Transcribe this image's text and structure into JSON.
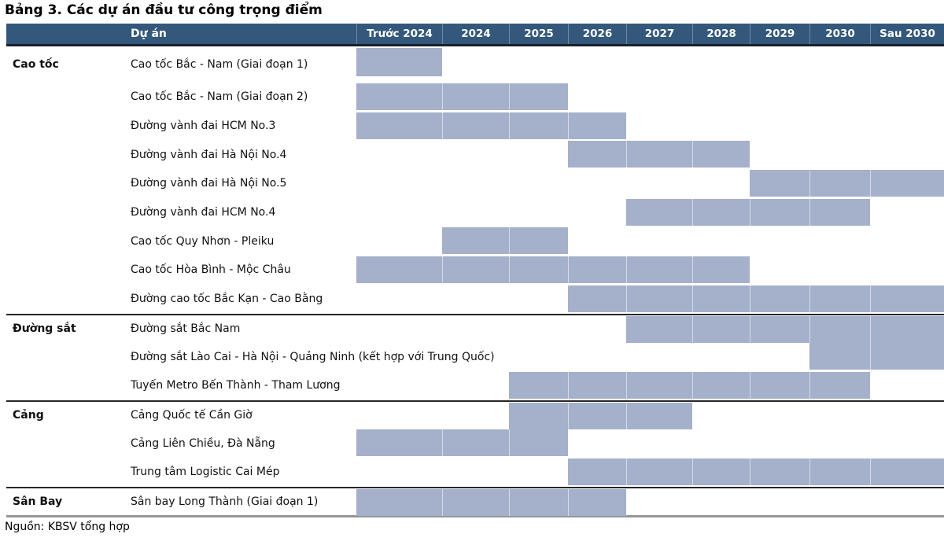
{
  "title": "Bảng 3. Các dự án đầu tư công trọng điểm",
  "source": "Nguồn: KBSV tổng hợp",
  "colors": {
    "header_bg": "#33587B",
    "header_text": "#FFFFFF",
    "header_border": "#17212D",
    "bar": "#A5B0CB",
    "section_line": "#262626",
    "table_bottom_border": "#969696"
  },
  "chart_data": {
    "type": "gantt",
    "title": "Bảng 3. Các dự án đầu tư công trọng điểm",
    "source": "Nguồn: KBSV tổng hợp",
    "project_header": "Dự án",
    "columns": [
      "Trước 2024",
      "2024",
      "2025",
      "2026",
      "2027",
      "2028",
      "2029",
      "2030",
      "Sau 2030"
    ],
    "legend_position": "none",
    "grid": "cell-borders-within-bars",
    "groups": [
      {
        "label": "Cao tốc",
        "projects": [
          {
            "name": "Cao tốc Bắc - Nam (Giai đoạn 1)",
            "start": "Trước 2024",
            "end": "Trước 2024"
          },
          {
            "name": "Cao tốc Bắc - Nam (Giai đoạn 2)",
            "start": "Trước 2024",
            "end": "2025"
          },
          {
            "name": "Đường vành đai HCM No.3",
            "start": "Trước 2024",
            "end": "2026"
          },
          {
            "name": "Đường vành đai Hà Nội No.4",
            "start": "2026",
            "end": "2028"
          },
          {
            "name": "Đường vành đai Hà Nội No.5",
            "start": "2029",
            "end": "Sau 2030"
          },
          {
            "name": "Đường vành đai HCM No.4",
            "start": "2027",
            "end": "2030"
          },
          {
            "name": "Cao tốc Quy Nhơn - Pleiku",
            "start": "2024",
            "end": "2025"
          },
          {
            "name": "Cao tốc Hòa Bình - Mộc Châu",
            "start": "Trước 2024",
            "end": "2028"
          },
          {
            "name": "Đường cao tốc Bắc Kạn - Cao Bằng",
            "start": "2026",
            "end": "Sau 2030"
          }
        ]
      },
      {
        "label": "Đường sắt",
        "projects": [
          {
            "name": "Đường sắt Bắc Nam",
            "start": "2027",
            "end": "Sau 2030"
          },
          {
            "name": "Đường sắt Lào Cai - Hà Nội - Quảng Ninh (kết hợp với Trung Quốc)",
            "start": "2030",
            "end": "Sau 2030"
          },
          {
            "name": "Tuyến Metro Bến Thành - Tham Lương",
            "start": "2025",
            "end": "2030"
          }
        ]
      },
      {
        "label": "Cảng",
        "projects": [
          {
            "name": "Cảng Quốc tế Cần Giờ",
            "start": "2025",
            "end": "2027"
          },
          {
            "name": "Cảng Liên Chiều, Đà Nẵng",
            "start": "Trước 2024",
            "end": "2025"
          },
          {
            "name": "Trung tâm Logistic Cai Mép",
            "start": "2026",
            "end": "Sau 2030"
          }
        ]
      },
      {
        "label": "Sân Bay",
        "projects": [
          {
            "name": "Sân bay Long Thành (Giai đoạn 1)",
            "start": "Trước 2024",
            "end": "2026"
          }
        ]
      }
    ]
  }
}
